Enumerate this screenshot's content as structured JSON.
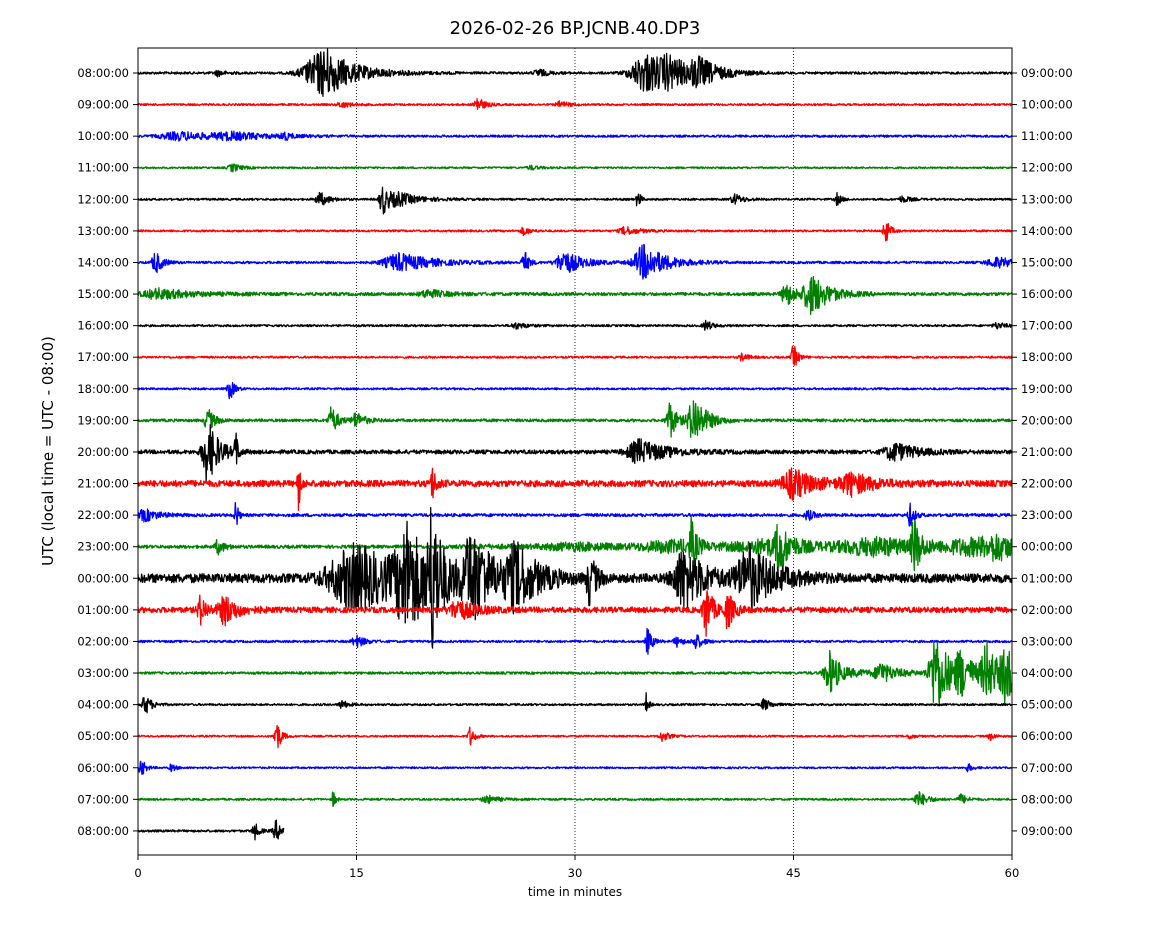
{
  "chart_data": {
    "type": "line",
    "title": "2026-02-26 BP.JCNB.40.DP3",
    "xlabel": "time in minutes",
    "ylabel": "UTC (local time = UTC - 08:00)",
    "xlim": [
      0,
      60
    ],
    "x_ticks": [
      "0",
      "15",
      "30",
      "45",
      "60"
    ],
    "grid": "vertical dotted lines at 15, 30, 45",
    "colors": [
      "#000000",
      "#ff0000",
      "#0000ff",
      "#008000"
    ],
    "left_ticks": [
      "08:00:00",
      "09:00:00",
      "10:00:00",
      "11:00:00",
      "12:00:00",
      "13:00:00",
      "14:00:00",
      "15:00:00",
      "16:00:00",
      "17:00:00",
      "18:00:00",
      "19:00:00",
      "20:00:00",
      "21:00:00",
      "22:00:00",
      "23:00:00",
      "00:00:00",
      "01:00:00",
      "02:00:00",
      "03:00:00",
      "04:00:00",
      "05:00:00",
      "06:00:00",
      "07:00:00",
      "08:00:00"
    ],
    "right_ticks": [
      "09:00:00",
      "10:00:00",
      "11:00:00",
      "12:00:00",
      "13:00:00",
      "14:00:00",
      "15:00:00",
      "16:00:00",
      "17:00:00",
      "18:00:00",
      "19:00:00",
      "20:00:00",
      "21:00:00",
      "22:00:00",
      "23:00:00",
      "00:00:00",
      "01:00:00",
      "02:00:00",
      "03:00:00",
      "04:00:00",
      "05:00:00",
      "06:00:00",
      "07:00:00",
      "08:00:00",
      "09:00:00"
    ],
    "traces": [
      {
        "end": 60,
        "noise": 1.2,
        "events": [
          [
            12.5,
            1.6,
            18
          ],
          [
            13,
            0.8,
            10
          ],
          [
            35,
            1.5,
            20
          ],
          [
            36.5,
            0.8,
            9
          ],
          [
            38.5,
            0.8,
            12
          ],
          [
            27.5,
            0.4,
            4
          ],
          [
            5.5,
            0.3,
            3
          ]
        ]
      },
      {
        "end": 60,
        "noise": 1.0,
        "events": [
          [
            23.3,
            0.3,
            8
          ],
          [
            29,
            0.4,
            3
          ],
          [
            14,
            0.4,
            3
          ]
        ]
      },
      {
        "end": 60,
        "noise": 1.1,
        "events": [
          [
            3,
            2,
            4
          ],
          [
            6.5,
            1.5,
            3
          ],
          [
            10,
            0.3,
            4
          ]
        ]
      },
      {
        "end": 60,
        "noise": 0.9,
        "events": [
          [
            6.5,
            0.4,
            4
          ],
          [
            27,
            0.4,
            2
          ]
        ]
      },
      {
        "end": 60,
        "noise": 1.0,
        "events": [
          [
            12.5,
            0.4,
            7
          ],
          [
            16.8,
            0.3,
            16
          ],
          [
            18,
            1,
            6
          ],
          [
            34.3,
            0.1,
            16
          ],
          [
            41,
            0.4,
            5
          ],
          [
            48,
            0.2,
            6
          ],
          [
            52.5,
            0.4,
            3
          ]
        ]
      },
      {
        "end": 60,
        "noise": 1.0,
        "events": [
          [
            33.5,
            0.6,
            4
          ],
          [
            26.5,
            0.3,
            4
          ],
          [
            51.3,
            0.2,
            14
          ]
        ]
      },
      {
        "end": 60,
        "noise": 1.2,
        "events": [
          [
            1.2,
            0.3,
            12
          ],
          [
            18,
            1.5,
            9
          ],
          [
            26.5,
            0.2,
            13
          ],
          [
            29.3,
            0.8,
            12
          ],
          [
            34.8,
            1,
            18
          ],
          [
            59,
            1,
            5
          ]
        ]
      },
      {
        "end": 60,
        "noise": 1.6,
        "events": [
          [
            1.5,
            1.5,
            5
          ],
          [
            20,
            0.8,
            4
          ],
          [
            44.5,
            0.4,
            13
          ],
          [
            46.3,
            0.8,
            20
          ]
        ]
      },
      {
        "end": 60,
        "noise": 1.0,
        "events": [
          [
            26,
            0.5,
            3
          ],
          [
            39,
            0.3,
            5
          ],
          [
            59,
            0.4,
            3
          ]
        ]
      },
      {
        "end": 60,
        "noise": 1.0,
        "events": [
          [
            45,
            0.2,
            13
          ],
          [
            41.5,
            0.3,
            4
          ]
        ]
      },
      {
        "end": 60,
        "noise": 1.0,
        "events": [
          [
            6.3,
            0.2,
            12
          ]
        ]
      },
      {
        "end": 60,
        "noise": 1.4,
        "events": [
          [
            13.3,
            0.3,
            14
          ],
          [
            15,
            0.4,
            8
          ],
          [
            36.5,
            0.3,
            20
          ],
          [
            38.2,
            0.6,
            24
          ],
          [
            4.8,
            0.3,
            12
          ]
        ]
      },
      {
        "end": 60,
        "noise": 2.0,
        "events": [
          [
            4.8,
            0.5,
            32
          ],
          [
            6.7,
            0.1,
            22
          ],
          [
            34.5,
            1.2,
            12
          ],
          [
            52,
            1,
            9
          ]
        ]
      },
      {
        "end": 60,
        "noise": 3.2,
        "events": [
          [
            11,
            0.1,
            30
          ],
          [
            20.2,
            0.2,
            16
          ],
          [
            45,
            1,
            14
          ],
          [
            49,
            1,
            10
          ]
        ]
      },
      {
        "end": 60,
        "noise": 1.5,
        "events": [
          [
            0.5,
            0.6,
            6
          ],
          [
            6.7,
            0.1,
            20
          ],
          [
            46,
            0.3,
            5
          ],
          [
            53,
            0.2,
            12
          ]
        ]
      },
      {
        "end": 60,
        "noise": 1.6,
        "rise": [
          20,
          60,
          9
        ],
        "events": [
          [
            5.5,
            0.3,
            7
          ],
          [
            38,
            0.2,
            24
          ],
          [
            44,
            0.3,
            22
          ],
          [
            53.3,
            0.3,
            28
          ],
          [
            59,
            0.8,
            8
          ]
        ]
      },
      {
        "end": 60,
        "noise": 4.5,
        "events": [
          [
            15,
            2.5,
            32
          ],
          [
            18.5,
            1,
            45
          ],
          [
            20.2,
            0.4,
            60
          ],
          [
            23,
            1,
            42
          ],
          [
            26,
            1,
            28
          ],
          [
            31,
            0.3,
            25
          ],
          [
            37.5,
            1,
            30
          ],
          [
            42,
            1.2,
            30
          ]
        ]
      },
      {
        "end": 60,
        "noise": 2.8,
        "events": [
          [
            4.3,
            0.3,
            14
          ],
          [
            6,
            0.6,
            14
          ],
          [
            22,
            0.8,
            10
          ],
          [
            39,
            0.3,
            28
          ],
          [
            40.5,
            0.3,
            18
          ]
        ]
      },
      {
        "end": 60,
        "noise": 1.1,
        "events": [
          [
            15,
            0.4,
            6
          ],
          [
            35,
            0.2,
            14
          ],
          [
            37,
            0.3,
            5
          ],
          [
            38.3,
            0.3,
            8
          ]
        ]
      },
      {
        "end": 60,
        "noise": 1.2,
        "rise": [
          45,
          60,
          3
        ],
        "events": [
          [
            47.5,
            0.5,
            22
          ],
          [
            51,
            0.5,
            10
          ],
          [
            54.8,
            0.6,
            42
          ],
          [
            56.5,
            0.5,
            18
          ],
          [
            58.3,
            0.5,
            28
          ],
          [
            59.6,
            0.5,
            24
          ]
        ]
      },
      {
        "end": 60,
        "noise": 1.0,
        "events": [
          [
            0.5,
            0.3,
            10
          ],
          [
            14,
            0.3,
            4
          ],
          [
            34.9,
            0.1,
            12
          ],
          [
            43,
            0.3,
            6
          ]
        ]
      },
      {
        "end": 60,
        "noise": 0.9,
        "events": [
          [
            9.5,
            0.2,
            18
          ],
          [
            22.8,
            0.2,
            10
          ],
          [
            36,
            0.3,
            5
          ],
          [
            53,
            0.2,
            3
          ],
          [
            58.5,
            0.2,
            4
          ]
        ]
      },
      {
        "end": 60,
        "noise": 0.9,
        "events": [
          [
            0.2,
            0.2,
            10
          ],
          [
            2.3,
            0.2,
            4
          ],
          [
            57,
            0.2,
            4
          ]
        ]
      },
      {
        "end": 60,
        "noise": 1.0,
        "events": [
          [
            13.4,
            0.1,
            10
          ],
          [
            24,
            0.5,
            4
          ],
          [
            53.6,
            0.4,
            8
          ],
          [
            56.5,
            0.3,
            5
          ]
        ]
      },
      {
        "end": 10,
        "noise": 1.1,
        "events": [
          [
            8,
            0.2,
            9
          ],
          [
            9.5,
            0.3,
            10
          ]
        ]
      }
    ]
  }
}
